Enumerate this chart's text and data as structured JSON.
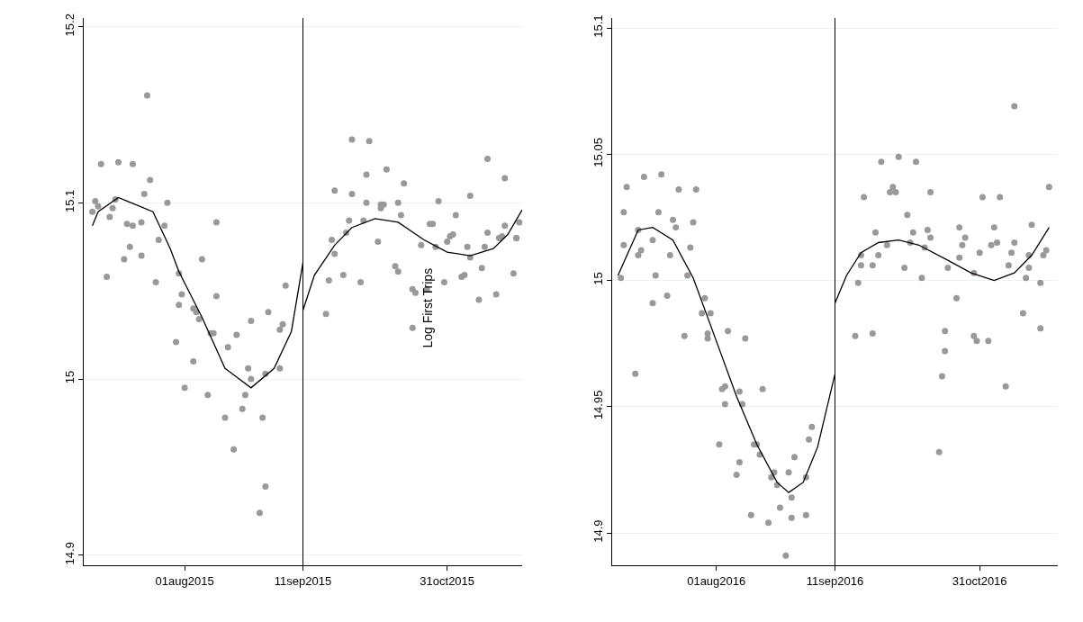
{
  "chart_data": [
    {
      "type": "scatter",
      "grid": "y",
      "xlim": [
        "2015-06-27",
        "2015-11-26"
      ],
      "xticks": [
        {
          "value": "2015-08-01",
          "label": "01aug2015"
        },
        {
          "value": "2015-09-11",
          "label": "11sep2015"
        },
        {
          "value": "2015-10-31",
          "label": "31oct2015"
        }
      ],
      "ylim": [
        14.894,
        15.205
      ],
      "yticks": [
        14.9,
        15,
        15.1,
        15.2
      ],
      "annotations": [
        "Log First Trips"
      ],
      "ref_lines": [
        {
          "axis": "x",
          "value": "2015-09-11",
          "color": "#000000"
        }
      ],
      "series": [
        {
          "marker": "circle",
          "color": "#999999",
          "x": [
            "2015-07-19",
            "2015-07-03",
            "2015-07-09",
            "2015-07-14",
            "2015-07-20",
            "2015-07-18",
            "2015-07-01",
            "2015-07-08",
            "2015-07-02",
            "2015-07-07",
            "2015-06-30",
            "2015-07-26",
            "2015-07-06",
            "2015-07-12",
            "2015-07-14",
            "2015-07-17",
            "2015-07-25",
            "2015-08-12",
            "2015-07-23",
            "2015-07-13",
            "2015-07-11",
            "2015-07-17",
            "2015-08-07",
            "2015-07-05",
            "2015-07-22",
            "2015-07-30",
            "2015-09-05",
            "2015-07-31",
            "2015-08-12",
            "2015-07-30",
            "2015-08-04",
            "2015-08-05",
            "2015-08-06",
            "2015-08-30",
            "2015-08-24",
            "2015-08-10",
            "2015-08-11",
            "2015-08-19",
            "2015-09-04",
            "2015-09-03",
            "2015-07-29",
            "2015-08-16",
            "2015-08-04",
            "2015-08-23",
            "2015-08-24",
            "2015-08-29",
            "2015-09-03",
            "2015-08-01",
            "2015-08-09",
            "2015-08-22",
            "2015-08-21",
            "2015-08-15",
            "2015-08-28",
            "2015-08-18",
            "2015-08-29",
            "2015-08-27",
            "2015-09-28",
            "2015-10-04",
            "2015-11-14",
            "2015-10-03",
            "2015-10-10",
            "2015-11-20",
            "2015-09-22",
            "2015-09-28",
            "2015-10-16",
            "2015-10-03",
            "2015-10-08",
            "2015-10-09",
            "2015-10-08",
            "2015-10-14",
            "2015-10-28",
            "2015-11-08",
            "2015-10-15",
            "2015-11-03",
            "2015-09-27",
            "2015-10-02",
            "2015-10-25",
            "2015-10-26",
            "2015-11-25",
            "2015-11-20",
            "2015-09-26",
            "2015-11-14",
            "2015-11-02",
            "2015-11-01",
            "2015-10-31",
            "2015-11-18",
            "2015-11-19",
            "2015-11-24",
            "2015-11-24",
            "2015-09-21",
            "2015-10-07",
            "2015-10-22",
            "2015-10-27",
            "2015-11-07",
            "2015-11-13",
            "2015-09-22",
            "2015-11-08",
            "2015-11-12",
            "2015-10-13",
            "2015-10-14",
            "2015-09-25",
            "2015-09-20",
            "2015-10-01",
            "2015-10-30",
            "2015-11-05",
            "2015-11-06",
            "2015-11-23",
            "2015-10-19",
            "2015-10-20",
            "2015-10-24",
            "2015-11-11",
            "2015-11-17",
            "2015-09-19",
            "2015-10-19"
          ],
          "values": [
            15.161,
            15.122,
            15.123,
            15.122,
            15.113,
            15.105,
            15.101,
            15.102,
            15.098,
            15.097,
            15.095,
            15.1,
            15.092,
            15.088,
            15.087,
            15.089,
            15.087,
            15.089,
            15.079,
            15.075,
            15.068,
            15.07,
            15.068,
            15.058,
            15.055,
            15.06,
            15.053,
            15.048,
            15.047,
            15.042,
            15.04,
            15.038,
            15.034,
            15.038,
            15.033,
            15.026,
            15.026,
            15.025,
            15.031,
            15.028,
            15.021,
            15.018,
            15.01,
            15.006,
            15.0,
            15.003,
            15.006,
            14.995,
            14.991,
            14.991,
            14.983,
            14.978,
            14.978,
            14.96,
            14.939,
            14.924,
            15.136,
            15.135,
            15.125,
            15.116,
            15.119,
            15.114,
            15.107,
            15.105,
            15.111,
            15.1,
            15.099,
            15.099,
            15.097,
            15.1,
            15.101,
            15.104,
            15.093,
            15.093,
            15.09,
            15.09,
            15.088,
            15.088,
            15.089,
            15.087,
            15.083,
            15.083,
            15.082,
            15.081,
            15.078,
            15.08,
            15.081,
            15.08,
            15.08,
            15.079,
            15.078,
            15.076,
            15.075,
            15.075,
            15.075,
            15.071,
            15.069,
            15.063,
            15.064,
            15.061,
            15.059,
            15.056,
            15.055,
            15.055,
            15.058,
            15.059,
            15.06,
            15.051,
            15.049,
            15.051,
            15.045,
            15.048,
            15.037,
            15.029
          ]
        },
        {
          "type": "line",
          "color": "#000000",
          "x": [
            "2015-06-30",
            "2015-07-02",
            "2015-07-09",
            "2015-07-12",
            "2015-07-21",
            "2015-07-27",
            "2015-07-30",
            "2015-08-07",
            "2015-08-15",
            "2015-08-24",
            "2015-09-01",
            "2015-09-07",
            "2015-09-11"
          ],
          "values": [
            15.087,
            15.095,
            15.103,
            15.101,
            15.095,
            15.074,
            15.061,
            15.035,
            15.006,
            14.995,
            15.006,
            15.027,
            15.066
          ]
        },
        {
          "type": "line",
          "color": "#000000",
          "x": [
            "2015-09-11",
            "2015-09-15",
            "2015-09-22",
            "2015-09-28",
            "2015-10-06",
            "2015-10-14",
            "2015-10-23",
            "2015-10-31",
            "2015-11-08",
            "2015-11-16",
            "2015-11-21",
            "2015-11-26"
          ],
          "values": [
            15.039,
            15.059,
            15.076,
            15.086,
            15.091,
            15.089,
            15.079,
            15.072,
            15.07,
            15.074,
            15.082,
            15.096
          ]
        }
      ]
    },
    {
      "type": "scatter",
      "grid": "y",
      "xlim": [
        "2016-06-26",
        "2016-11-27"
      ],
      "xticks": [
        {
          "value": "2016-08-01",
          "label": "01aug2016"
        },
        {
          "value": "2016-09-11",
          "label": "11sep2016"
        },
        {
          "value": "2016-10-31",
          "label": "31oct2016"
        }
      ],
      "ylim": [
        14.887,
        15.104
      ],
      "yticks": [
        14.9,
        14.95,
        15,
        15.05,
        15.1
      ],
      "ref_lines": [
        {
          "axis": "x",
          "value": "2016-09-11",
          "color": "#000000"
        }
      ],
      "series": [
        {
          "marker": "circle",
          "color": "#999999",
          "x": [
            "2016-07-07",
            "2016-07-13",
            "2016-07-01",
            "2016-07-19",
            "2016-07-25",
            "2016-06-30",
            "2016-07-12",
            "2016-07-17",
            "2016-07-24",
            "2016-07-18",
            "2016-07-05",
            "2016-06-30",
            "2016-07-10",
            "2016-07-06",
            "2016-07-05",
            "2016-07-16",
            "2016-07-23",
            "2016-06-29",
            "2016-07-11",
            "2016-07-22",
            "2016-07-15",
            "2016-07-10",
            "2016-07-28",
            "2016-07-27",
            "2016-07-30",
            "2016-07-21",
            "2016-07-29",
            "2016-07-29",
            "2016-08-05",
            "2016-08-11",
            "2016-07-04",
            "2016-08-03",
            "2016-08-04",
            "2016-08-09",
            "2016-08-17",
            "2016-08-04",
            "2016-08-10",
            "2016-08-02",
            "2016-08-14",
            "2016-08-15",
            "2016-08-16",
            "2016-09-03",
            "2016-09-02",
            "2016-08-28",
            "2016-08-09",
            "2016-08-08",
            "2016-08-21",
            "2016-08-26",
            "2016-08-20",
            "2016-08-22",
            "2016-09-01",
            "2016-08-27",
            "2016-08-23",
            "2016-08-13",
            "2016-08-19",
            "2016-08-27",
            "2016-09-01",
            "2016-08-25",
            "2016-11-12",
            "2016-09-27",
            "2016-10-03",
            "2016-10-09",
            "2016-10-01",
            "2016-09-30",
            "2016-10-02",
            "2016-10-14",
            "2016-09-21",
            "2016-11-01",
            "2016-11-07",
            "2016-11-24",
            "2016-10-06",
            "2016-09-25",
            "2016-10-08",
            "2016-10-13",
            "2016-10-14",
            "2016-10-24",
            "2016-11-05",
            "2016-11-18",
            "2016-10-26",
            "2016-09-29",
            "2016-10-07",
            "2016-10-25",
            "2016-11-06",
            "2016-11-04",
            "2016-11-12",
            "2016-10-12",
            "2016-09-20",
            "2016-09-26",
            "2016-10-31",
            "2016-11-11",
            "2016-11-17",
            "2016-11-23",
            "2016-11-22",
            "2016-09-20",
            "2016-09-24",
            "2016-10-05",
            "2016-10-24",
            "2016-10-20",
            "2016-11-10",
            "2016-11-17",
            "2016-10-29",
            "2016-09-19",
            "2016-10-11",
            "2016-11-16",
            "2016-11-21",
            "2016-10-23",
            "2016-11-15",
            "2016-11-21",
            "2016-09-18",
            "2016-09-24",
            "2016-10-19",
            "2016-10-29",
            "2016-10-30",
            "2016-11-03",
            "2016-10-19",
            "2016-10-18",
            "2016-11-09",
            "2016-10-17"
          ],
          "values": [
            15.041,
            15.042,
            15.037,
            15.036,
            15.036,
            15.027,
            15.027,
            15.024,
            15.023,
            15.021,
            15.02,
            15.014,
            15.016,
            15.012,
            15.01,
            15.01,
            15.013,
            15.001,
            15.002,
            15.002,
            14.994,
            14.991,
            14.993,
            14.987,
            14.987,
            14.978,
            14.979,
            14.977,
            14.98,
            14.977,
            14.963,
            14.957,
            14.958,
            14.956,
            14.957,
            14.951,
            14.951,
            14.935,
            14.935,
            14.935,
            14.931,
            14.942,
            14.937,
            14.93,
            14.928,
            14.923,
            14.924,
            14.924,
            14.922,
            14.919,
            14.922,
            14.914,
            14.91,
            14.907,
            14.904,
            14.906,
            14.907,
            14.891,
            15.069,
            15.047,
            15.049,
            15.047,
            15.037,
            15.035,
            15.035,
            15.035,
            15.033,
            15.033,
            15.033,
            15.037,
            15.026,
            15.019,
            15.019,
            15.02,
            15.017,
            15.021,
            15.021,
            15.022,
            15.017,
            15.014,
            15.015,
            15.014,
            15.015,
            15.014,
            15.015,
            15.013,
            15.01,
            15.01,
            15.011,
            15.011,
            15.01,
            15.012,
            15.01,
            15.006,
            15.006,
            15.005,
            15.009,
            15.005,
            15.006,
            15.005,
            15.003,
            14.999,
            15.001,
            15.001,
            14.999,
            14.993,
            14.987,
            14.981,
            14.978,
            14.979,
            14.98,
            14.978,
            14.976,
            14.976,
            14.972,
            14.962,
            14.958,
            14.932
          ]
        },
        {
          "type": "line",
          "color": "#000000",
          "x": [
            "2016-06-28",
            "2016-07-05",
            "2016-07-10",
            "2016-07-17",
            "2016-07-24",
            "2016-08-01",
            "2016-08-08",
            "2016-08-15",
            "2016-08-22",
            "2016-08-26",
            "2016-08-31",
            "2016-09-05",
            "2016-09-11"
          ],
          "values": [
            15.002,
            15.02,
            15.021,
            15.016,
            15.001,
            14.976,
            14.954,
            14.935,
            14.92,
            14.916,
            14.92,
            14.934,
            14.963
          ]
        },
        {
          "type": "line",
          "color": "#000000",
          "x": [
            "2016-09-11",
            "2016-09-15",
            "2016-09-20",
            "2016-09-26",
            "2016-10-03",
            "2016-10-10",
            "2016-10-20",
            "2016-10-28",
            "2016-11-05",
            "2016-11-12",
            "2016-11-18",
            "2016-11-24"
          ],
          "values": [
            14.991,
            15.002,
            15.011,
            15.015,
            15.016,
            15.014,
            15.008,
            15.003,
            15.0,
            15.003,
            15.01,
            15.021
          ]
        }
      ]
    }
  ]
}
